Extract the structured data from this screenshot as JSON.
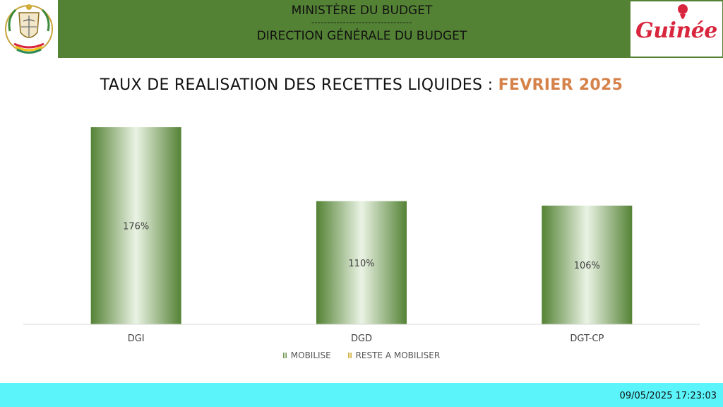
{
  "header": {
    "ministry": "MINISTÈRE DU BUDGET",
    "separator": "--------------------------------",
    "direction": "DIRECTION GÉNÉRALE DU BUDGET",
    "brand": "Guinée",
    "emblem_icon": "coat-of-arms-guinea",
    "colors": {
      "bar": "#548235",
      "brand": "#d7263d"
    }
  },
  "title": {
    "main": "TAUX DE REALISATION DES RECETTES LIQUIDES : ",
    "period": "FEVRIER 2025"
  },
  "chart_data": {
    "type": "bar",
    "stacked": true,
    "categories": [
      "DGI",
      "DGD",
      "DGT-CP"
    ],
    "series": [
      {
        "name": "MOBILISE",
        "values": [
          176,
          110,
          106
        ],
        "labels": [
          "176%",
          "110%",
          "106%"
        ],
        "color": "#548235"
      },
      {
        "name": "RESTE A MOBILISER",
        "values": [
          0,
          0,
          0
        ],
        "color": "#c9a227"
      }
    ],
    "unit": "%",
    "ylim": [
      0,
      200
    ],
    "grid": false,
    "legend_position": "bottom"
  },
  "footer": {
    "timestamp": "09/05/2025 17:23:03",
    "color": "#5cf4fb"
  }
}
